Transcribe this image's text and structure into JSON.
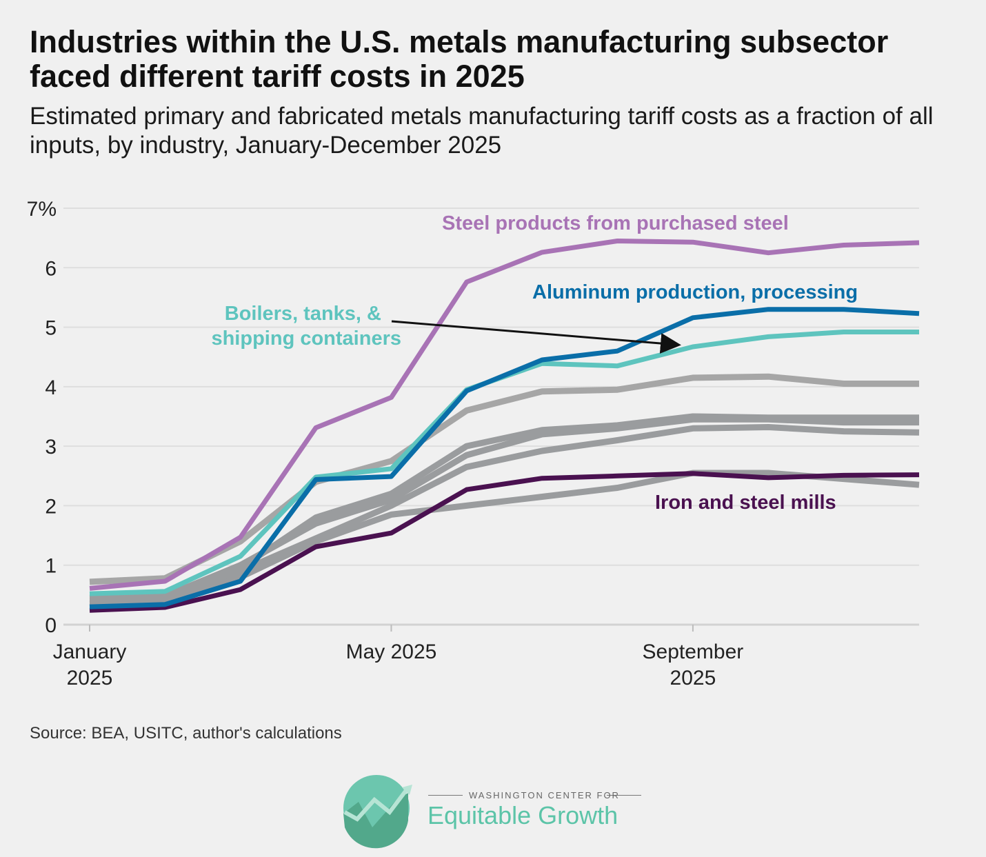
{
  "title": "Industries within the U.S. metals manufacturing subsector faced different tariff costs in 2025",
  "subtitle": "Estimated primary and fabricated metals manufacturing tariff costs as a fraction of all inputs, by industry, January-December 2025",
  "source": "Source: BEA, USITC, author's calculations",
  "logo": {
    "top": "WASHINGTON CENTER FOR",
    "main": "Equitable Growth"
  },
  "chart_data": {
    "type": "line",
    "x": [
      "Jan 2025",
      "Feb 2025",
      "Mar 2025",
      "Apr 2025",
      "May 2025",
      "Jun 2025",
      "Jul 2025",
      "Aug 2025",
      "Sep 2025",
      "Oct 2025",
      "Nov 2025",
      "Dec 2025"
    ],
    "x_ticks": [
      {
        "index": 0,
        "line1": "January",
        "line2": "2025"
      },
      {
        "index": 4,
        "line1": "May 2025",
        "line2": ""
      },
      {
        "index": 8,
        "line1": "September",
        "line2": "2025"
      }
    ],
    "y_ticks": [
      "0",
      "1",
      "2",
      "3",
      "4",
      "5",
      "6",
      "7%"
    ],
    "ylim": [
      0,
      7
    ],
    "grid": "horizontal",
    "series": [
      {
        "values": [
          0.72,
          0.78,
          1.4,
          2.4,
          2.75,
          3.6,
          3.92,
          3.95,
          4.15,
          4.17,
          4.05,
          4.05
        ],
        "color": "#a6a6a6"
      },
      {
        "values": [
          0.4,
          0.42,
          0.95,
          1.8,
          2.2,
          3.0,
          3.27,
          3.35,
          3.5,
          3.48,
          3.48,
          3.48
        ],
        "color": "#9a9c9e"
      },
      {
        "values": [
          0.45,
          0.48,
          1.0,
          1.7,
          2.1,
          2.85,
          3.2,
          3.3,
          3.45,
          3.45,
          3.4,
          3.4
        ],
        "color": "#9a9c9e"
      },
      {
        "values": [
          0.35,
          0.4,
          0.9,
          1.45,
          2.0,
          2.65,
          2.92,
          3.1,
          3.3,
          3.32,
          3.25,
          3.23
        ],
        "color": "#9a9c9e"
      },
      {
        "values": [
          0.3,
          0.35,
          0.8,
          1.4,
          1.85,
          2.0,
          2.15,
          2.3,
          2.55,
          2.55,
          2.45,
          2.35
        ],
        "color": "#9a9c9e"
      },
      {
        "name": "Iron and steel mills",
        "values": [
          0.24,
          0.29,
          0.59,
          1.31,
          1.54,
          2.27,
          2.46,
          2.5,
          2.54,
          2.47,
          2.51,
          2.52
        ],
        "color": "#4a1150"
      },
      {
        "name": "Boilers, tanks, & shipping containers",
        "values": [
          0.52,
          0.56,
          1.15,
          2.48,
          2.62,
          3.95,
          4.39,
          4.35,
          4.67,
          4.84,
          4.92,
          4.92
        ],
        "color": "#5ec4be"
      },
      {
        "name": "Aluminum production, processing",
        "values": [
          0.3,
          0.34,
          0.73,
          2.44,
          2.49,
          3.93,
          4.45,
          4.6,
          5.16,
          5.3,
          5.3,
          5.23
        ],
        "color": "#0a6ea8"
      },
      {
        "name": "Steel products from purchased steel",
        "values": [
          0.61,
          0.73,
          1.47,
          3.31,
          3.82,
          5.76,
          6.26,
          6.45,
          6.43,
          6.25,
          6.38,
          6.42
        ],
        "color": "#a873b5"
      }
    ],
    "annotations": {
      "steel_products": "Steel products from purchased steel",
      "aluminum": "Aluminum production, processing",
      "boilers_line1": "Boilers, tanks, &",
      "boilers_line2": "shipping containers",
      "iron": "Iron and steel mills"
    }
  }
}
